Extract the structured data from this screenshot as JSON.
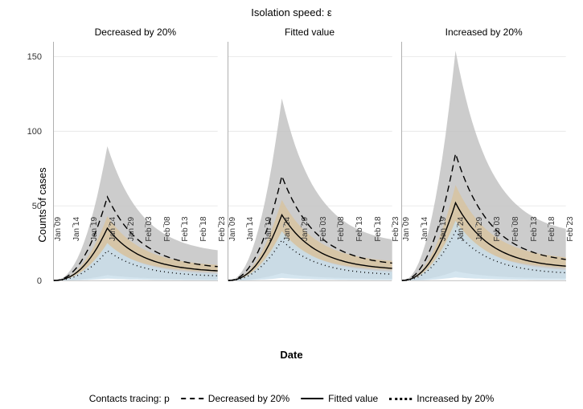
{
  "title": "Isolation speed:  ε",
  "y_axis_label": "Counts of cases",
  "x_axis_label": "Date",
  "legend_title": "Contacts tracing: p",
  "legend_items": [
    {
      "label": "Decreased by 20%",
      "dash": "10,6"
    },
    {
      "label": "Fitted value",
      "dash": ""
    },
    {
      "label": "Increased by 20%",
      "dash": "2,4"
    }
  ],
  "y_ticks": [
    0,
    50,
    100,
    150
  ],
  "y_max": 160,
  "x_ticks": [
    "Jan 09",
    "Jan 14",
    "Jan 19",
    "Jan 24",
    "Jan 29",
    "Feb 03",
    "Feb 08",
    "Feb 13",
    "Feb 18",
    "Feb 23"
  ],
  "colors": {
    "band_outer": "#bfbfbf",
    "band_mid": "#d9c39b",
    "band_inner": "#c9dfeb",
    "line": "#000000",
    "background": "#ffffff",
    "grid": "#e8e8e8",
    "axis": "#b0b0b0"
  },
  "panels": [
    {
      "title": "Decreased by 20%",
      "peak_scale": 1.0,
      "band_outer_peak": 90,
      "band_mid_peak": 43,
      "band_inner_peak": 25,
      "dashed_peak": 56,
      "solid_peak": 35,
      "dotted_peak": 20
    },
    {
      "title": "Fitted value",
      "peak_scale": 1.35,
      "band_outer_peak": 122,
      "band_mid_peak": 54,
      "band_inner_peak": 33,
      "dashed_peak": 70,
      "solid_peak": 44,
      "dotted_peak": 27
    },
    {
      "title": "Increased by 20%",
      "peak_scale": 1.7,
      "band_outer_peak": 154,
      "band_mid_peak": 64,
      "band_inner_peak": 40,
      "dashed_peak": 85,
      "solid_peak": 52,
      "dotted_peak": 33
    }
  ],
  "fontsize_title": 13,
  "fontsize_panel_title": 12,
  "fontsize_axis_label": 13,
  "fontsize_tick": 11
}
